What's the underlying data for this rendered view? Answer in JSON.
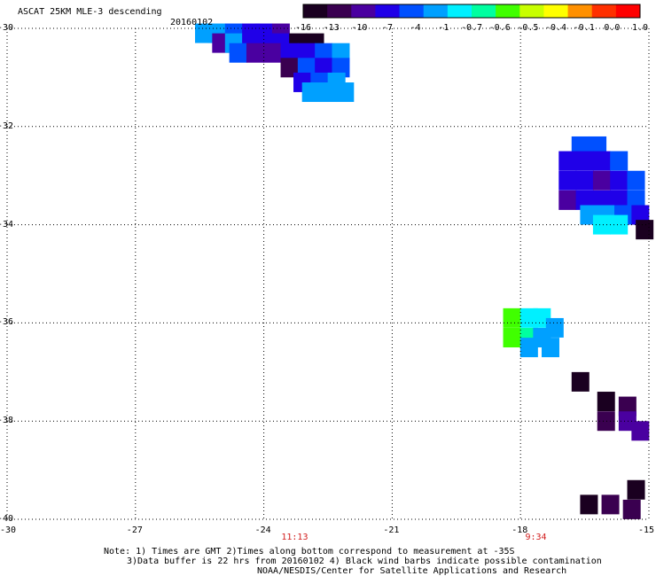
{
  "header": {
    "title": "ASCAT 25KM MLE-3 descending",
    "date": "20160102"
  },
  "colorbar": {
    "labels": [
      "-16",
      "-13",
      "-10",
      "-7",
      "-4",
      "-1",
      "-0.7",
      "-0.6",
      "-0.5",
      "-0.4",
      "-0.1",
      "0.0",
      "1.0"
    ],
    "colors": [
      "#1a0020",
      "#3a0050",
      "#4a00a0",
      "#2000e8",
      "#0050ff",
      "#00a0ff",
      "#00f0ff",
      "#00ffa0",
      "#40ff00",
      "#c8ff00",
      "#ffff00",
      "#ff9000",
      "#ff3000",
      "#ff0000"
    ]
  },
  "time_labels": [
    {
      "text": "11:13",
      "lon": -23.3
    },
    {
      "text": "9:34",
      "lon": -17.6
    }
  ],
  "notes": {
    "line1": "Note: 1) Times are GMT 2)Times along bottom correspond to measurement at -35S",
    "line2": "3)Data buffer is 22 hrs from 20160102 4) Black wind barbs indicate possible contamination",
    "line3": "NOAA/NESDIS/Center for Satellite Applications and Research"
  },
  "chart_data": {
    "type": "heatmap",
    "title": "ASCAT 25KM MLE-3 descending",
    "xlim": [
      -30,
      -15
    ],
    "ylim": [
      -40,
      -30
    ],
    "x_ticks": [
      "-30",
      "-27",
      "-24",
      "-21",
      "-18",
      "-15"
    ],
    "y_ticks": [
      "-30",
      "-32",
      "-34",
      "-36",
      "-38",
      "-40"
    ],
    "grid": true,
    "colorscale_labels": [
      "-16",
      "-13",
      "-10",
      "-7",
      "-4",
      "-1",
      "-0.7",
      "-0.6",
      "-0.5",
      "-0.4",
      "-0.1",
      "0.0",
      "1.0"
    ],
    "cells": [
      {
        "lon": -25.4,
        "lat": -30.1,
        "c": 5
      },
      {
        "lon": -25.1,
        "lat": -30.1,
        "c": 5
      },
      {
        "lon": -24.7,
        "lat": -30.1,
        "c": 4
      },
      {
        "lon": -24.3,
        "lat": -30.1,
        "c": 3
      },
      {
        "lon": -24.0,
        "lat": -30.1,
        "c": 3
      },
      {
        "lon": -23.6,
        "lat": -30.1,
        "c": 2
      },
      {
        "lon": -25.0,
        "lat": -30.3,
        "c": 2
      },
      {
        "lon": -24.7,
        "lat": -30.3,
        "c": 5
      },
      {
        "lon": -24.3,
        "lat": -30.3,
        "c": 3
      },
      {
        "lon": -24.0,
        "lat": -30.3,
        "c": 3
      },
      {
        "lon": -23.6,
        "lat": -30.3,
        "c": 3
      },
      {
        "lon": -23.2,
        "lat": -30.3,
        "c": 0
      },
      {
        "lon": -22.8,
        "lat": -30.3,
        "c": 0
      },
      {
        "lon": -24.6,
        "lat": -30.5,
        "c": 4
      },
      {
        "lon": -24.2,
        "lat": -30.5,
        "c": 2
      },
      {
        "lon": -23.8,
        "lat": -30.5,
        "c": 2
      },
      {
        "lon": -23.4,
        "lat": -30.5,
        "c": 3
      },
      {
        "lon": -23.0,
        "lat": -30.5,
        "c": 3
      },
      {
        "lon": -22.6,
        "lat": -30.5,
        "c": 4
      },
      {
        "lon": -22.2,
        "lat": -30.5,
        "c": 5
      },
      {
        "lon": -23.4,
        "lat": -30.8,
        "c": 1
      },
      {
        "lon": -23.0,
        "lat": -30.8,
        "c": 4
      },
      {
        "lon": -22.6,
        "lat": -30.8,
        "c": 3
      },
      {
        "lon": -22.2,
        "lat": -30.8,
        "c": 4
      },
      {
        "lon": -23.1,
        "lat": -31.1,
        "c": 3
      },
      {
        "lon": -22.7,
        "lat": -31.1,
        "c": 4
      },
      {
        "lon": -22.3,
        "lat": -31.1,
        "c": 5
      },
      {
        "lon": -22.9,
        "lat": -31.3,
        "c": 5
      },
      {
        "lon": -22.5,
        "lat": -31.3,
        "c": 5
      },
      {
        "lon": -22.1,
        "lat": -31.3,
        "c": 5
      },
      {
        "lon": -16.6,
        "lat": -32.4,
        "c": 4
      },
      {
        "lon": -16.2,
        "lat": -32.4,
        "c": 4
      },
      {
        "lon": -16.9,
        "lat": -32.7,
        "c": 3
      },
      {
        "lon": -16.5,
        "lat": -32.7,
        "c": 3
      },
      {
        "lon": -16.1,
        "lat": -32.7,
        "c": 3
      },
      {
        "lon": -15.7,
        "lat": -32.7,
        "c": 4
      },
      {
        "lon": -16.9,
        "lat": -33.1,
        "c": 3
      },
      {
        "lon": -16.5,
        "lat": -33.1,
        "c": 3
      },
      {
        "lon": -16.1,
        "lat": -33.1,
        "c": 2
      },
      {
        "lon": -15.7,
        "lat": -33.1,
        "c": 3
      },
      {
        "lon": -15.3,
        "lat": -33.1,
        "c": 4
      },
      {
        "lon": -16.9,
        "lat": -33.5,
        "c": 2
      },
      {
        "lon": -16.5,
        "lat": -33.5,
        "c": 3
      },
      {
        "lon": -16.1,
        "lat": -33.5,
        "c": 3
      },
      {
        "lon": -15.7,
        "lat": -33.5,
        "c": 3
      },
      {
        "lon": -15.3,
        "lat": -33.5,
        "c": 4
      },
      {
        "lon": -16.4,
        "lat": -33.8,
        "c": 5
      },
      {
        "lon": -16.0,
        "lat": -33.8,
        "c": 5
      },
      {
        "lon": -15.6,
        "lat": -33.8,
        "c": 4
      },
      {
        "lon": -15.2,
        "lat": -33.8,
        "c": 3
      },
      {
        "lon": -16.1,
        "lat": -34.0,
        "c": 6
      },
      {
        "lon": -15.7,
        "lat": -34.0,
        "c": 6
      },
      {
        "lon": -15.1,
        "lat": -34.1,
        "c": 0
      },
      {
        "lon": -18.2,
        "lat": -35.9,
        "c": 8
      },
      {
        "lon": -17.8,
        "lat": -35.9,
        "c": 6
      },
      {
        "lon": -17.5,
        "lat": -35.9,
        "c": 6
      },
      {
        "lon": -17.2,
        "lat": -36.1,
        "c": 5
      },
      {
        "lon": -18.2,
        "lat": -36.3,
        "c": 8
      },
      {
        "lon": -17.8,
        "lat": -36.3,
        "c": 7
      },
      {
        "lon": -17.5,
        "lat": -36.3,
        "c": 5
      },
      {
        "lon": -17.8,
        "lat": -36.5,
        "c": 5
      },
      {
        "lon": -17.3,
        "lat": -36.5,
        "c": 5
      },
      {
        "lon": -16.6,
        "lat": -37.2,
        "c": 0
      },
      {
        "lon": -16.0,
        "lat": -37.6,
        "c": 0
      },
      {
        "lon": -15.5,
        "lat": -37.7,
        "c": 1
      },
      {
        "lon": -16.0,
        "lat": -38.0,
        "c": 1
      },
      {
        "lon": -15.5,
        "lat": -38.0,
        "c": 2
      },
      {
        "lon": -15.2,
        "lat": -38.2,
        "c": 2
      },
      {
        "lon": -15.3,
        "lat": -39.4,
        "c": 0
      },
      {
        "lon": -16.4,
        "lat": -39.7,
        "c": 0
      },
      {
        "lon": -15.9,
        "lat": -39.7,
        "c": 1
      },
      {
        "lon": -15.4,
        "lat": -39.8,
        "c": 1
      }
    ]
  }
}
